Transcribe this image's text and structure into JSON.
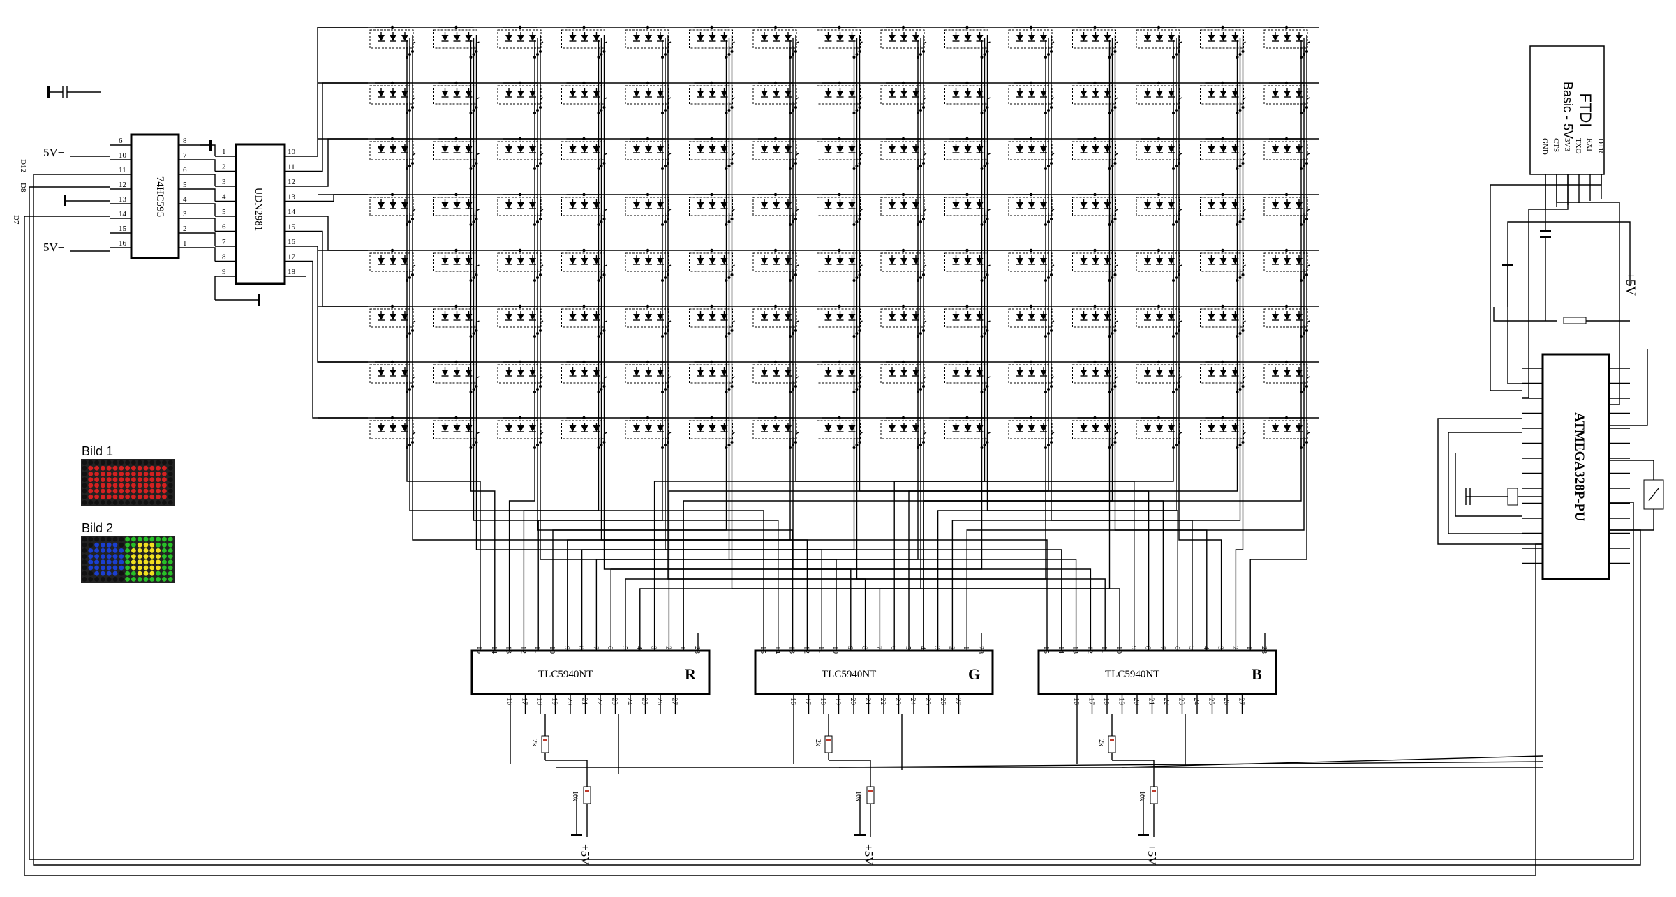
{
  "shift_register": {
    "name": "74HC595",
    "pins_left": [
      "6",
      "10",
      "11",
      "12",
      "13",
      "14",
      "15",
      "16"
    ],
    "pins_right": [
      "8",
      "7",
      "6",
      "5",
      "4",
      "3",
      "2",
      "1"
    ]
  },
  "driver": {
    "name": "UDN2981",
    "pins_left": [
      "1",
      "2",
      "3",
      "4",
      "5",
      "6",
      "7",
      "8",
      "9"
    ],
    "pins_right": [
      "10",
      "11",
      "12",
      "13",
      "14",
      "15",
      "16",
      "17",
      "18"
    ]
  },
  "labels": {
    "vcc1": "5V+",
    "vcc2": "5V+",
    "d12": "D12",
    "d8": "D8",
    "d7": "D7",
    "plus5v": "+5V"
  },
  "tlc": [
    {
      "name": "TLC5940NT",
      "channel": "R",
      "color": "#ff0000",
      "top_pins": [
        "15",
        "14",
        "13",
        "12",
        "11",
        "10",
        "9",
        "8",
        "7",
        "6",
        "5",
        "4",
        "3",
        "2",
        "1",
        "28"
      ],
      "bottom_pins": [
        "16",
        "17",
        "18",
        "19",
        "20",
        "21",
        "22",
        "23",
        "24",
        "25",
        "26",
        "27"
      ],
      "r1": "2k",
      "r2": "10k",
      "supply": "+5V"
    },
    {
      "name": "TLC5940NT",
      "channel": "G",
      "color": "#22cc22",
      "top_pins": [
        "15",
        "14",
        "13",
        "12",
        "11",
        "10",
        "9",
        "8",
        "7",
        "6",
        "5",
        "4",
        "3",
        "2",
        "1",
        "28"
      ],
      "bottom_pins": [
        "16",
        "17",
        "18",
        "19",
        "20",
        "21",
        "22",
        "23",
        "24",
        "25",
        "26",
        "27"
      ],
      "r1": "2k",
      "r2": "10k",
      "supply": "+5V"
    },
    {
      "name": "TLC5940NT",
      "channel": "B",
      "color": "#0000ff",
      "top_pins": [
        "15",
        "14",
        "13",
        "12",
        "11",
        "10",
        "9",
        "8",
        "7",
        "6",
        "5",
        "4",
        "3",
        "2",
        "1",
        "28"
      ],
      "bottom_pins": [
        "16",
        "17",
        "18",
        "19",
        "20",
        "21",
        "22",
        "23",
        "24",
        "25",
        "26",
        "27"
      ],
      "r1": "2k",
      "r2": "10k",
      "supply": "+5V"
    }
  ],
  "mcu": {
    "name": "ATMEGA328P-PU"
  },
  "ftdi": {
    "title": "FTDI",
    "subtitle": "Basic - 5V",
    "pins": [
      "GND",
      "CTS",
      "3V3",
      "TXO",
      "RXI",
      "DTR"
    ]
  },
  "bild1": {
    "title": "Bild 1",
    "fill": "#d42020",
    "dot": "#111111"
  },
  "bild2": {
    "title": "Bild 2",
    "blue": "#1a3fd0",
    "yellow": "#f0e020",
    "green": "#28c028"
  },
  "matrix": {
    "rows": 8,
    "cols": 15,
    "led_colors": [
      "R",
      "G",
      "B"
    ]
  }
}
